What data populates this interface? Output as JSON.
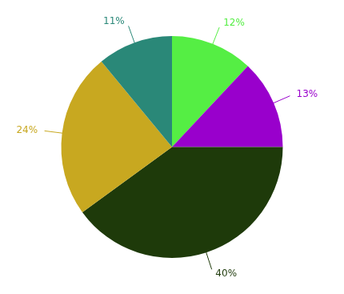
{
  "chart_data": {
    "type": "pie",
    "values": [
      12,
      13,
      40,
      24,
      11
    ],
    "value_labels": [
      "12%",
      "13%",
      "40%",
      "24%",
      "11%"
    ],
    "colors": [
      "#55ee44",
      "#9900cc",
      "#1e3a0a",
      "#c8a820",
      "#2a8878"
    ],
    "data_labels": true,
    "legend": false
  }
}
